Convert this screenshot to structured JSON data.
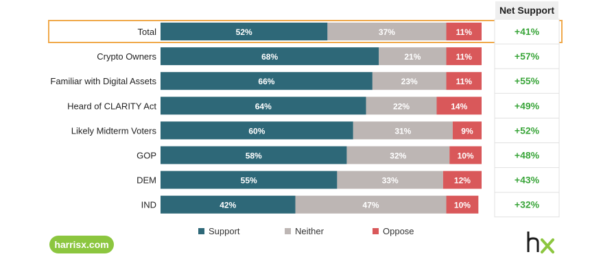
{
  "chart_data": {
    "type": "bar",
    "stacked": true,
    "orientation": "horizontal",
    "categories": [
      "Total",
      "Crypto Owners",
      "Familiar with Digital Assets",
      "Heard of CLARITY Act",
      "Likely Midterm Voters",
      "GOP",
      "DEM",
      "IND"
    ],
    "series": [
      {
        "name": "Support",
        "color": "#2e6878",
        "values": [
          52,
          68,
          66,
          64,
          60,
          58,
          55,
          42
        ]
      },
      {
        "name": "Neither",
        "color": "#bdb6b4",
        "values": [
          37,
          21,
          23,
          22,
          31,
          32,
          33,
          47
        ]
      },
      {
        "name": "Oppose",
        "color": "#d9585a",
        "values": [
          11,
          11,
          11,
          14,
          9,
          10,
          12,
          10
        ]
      }
    ],
    "value_labels": [
      [
        "52%",
        "37%",
        "11%"
      ],
      [
        "68%",
        "21%",
        "11%"
      ],
      [
        "66%",
        "23%",
        "11%"
      ],
      [
        "64%",
        "22%",
        "14%"
      ],
      [
        "60%",
        "31%",
        "9%"
      ],
      [
        "58%",
        "32%",
        "10%"
      ],
      [
        "55%",
        "33%",
        "12%"
      ],
      [
        "42%",
        "47%",
        "10%"
      ]
    ],
    "net_support": {
      "header": "Net Support",
      "values": [
        "+41%",
        "+57%",
        "+55%",
        "+49%",
        "+52%",
        "+48%",
        "+43%",
        "+32%"
      ],
      "color": "#3aa53a"
    },
    "highlighted_category": "Total",
    "highlight_color": "#f0a94a",
    "legend": {
      "position": "bottom",
      "items": [
        "Support",
        "Neither",
        "Oppose"
      ]
    }
  },
  "brand": {
    "url": "harrisx.com",
    "logo_text": "hx",
    "logo_color_h": "#1a1a1a",
    "logo_color_x": "#8cc63f"
  }
}
